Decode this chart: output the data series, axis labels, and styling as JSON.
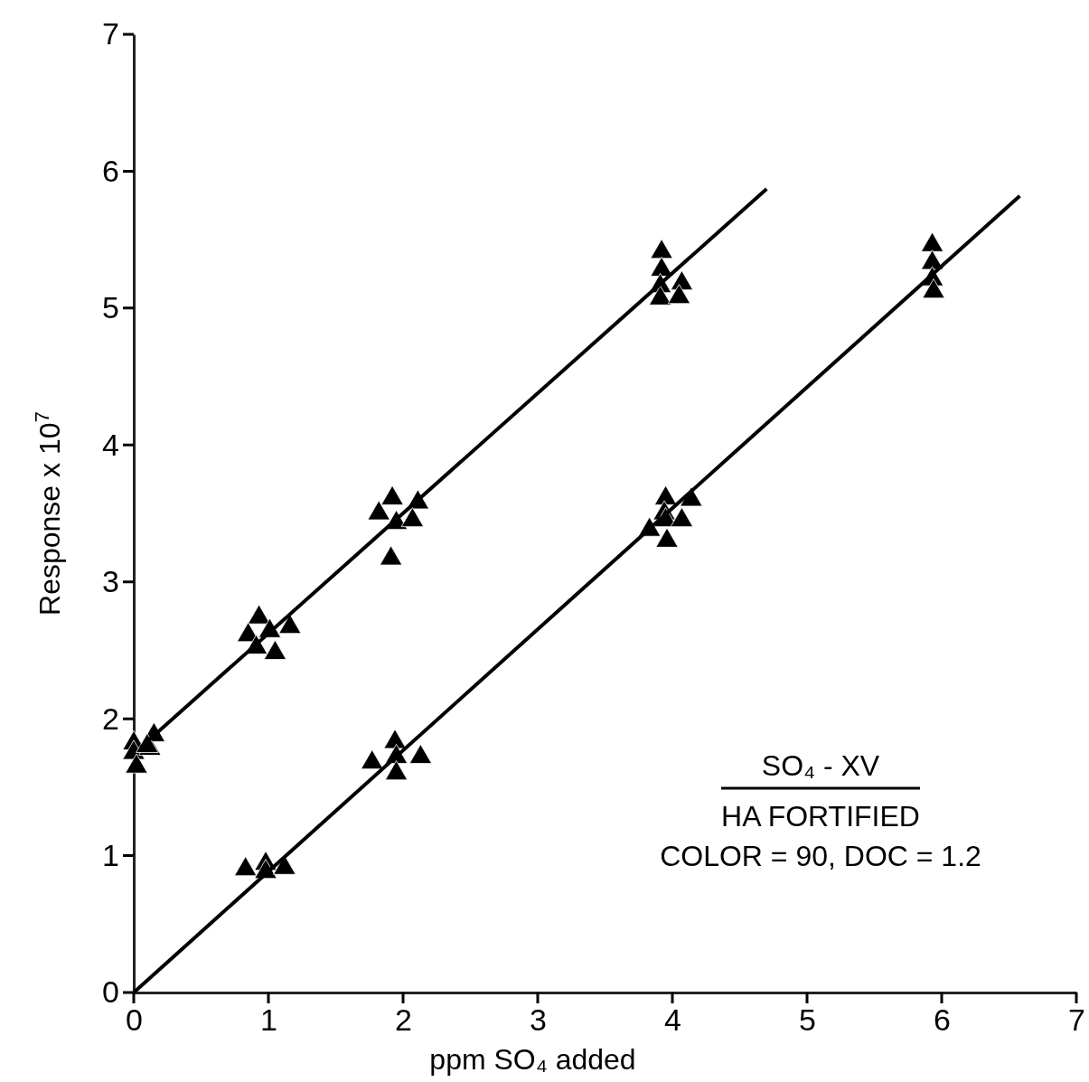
{
  "chart_data": {
    "type": "scatter",
    "xlabel": "ppm SO₄ added",
    "ylabel": "Response x 10$^{7}$",
    "xlim": [
      0,
      7
    ],
    "ylim": [
      0,
      7
    ],
    "xticks": [
      0,
      1,
      2,
      3,
      4,
      5,
      6,
      7
    ],
    "yticks": [
      0,
      1,
      2,
      3,
      4,
      5,
      6,
      7
    ],
    "grid": false,
    "legend": false,
    "marker": "triangle",
    "series": [
      {
        "type": "scatter",
        "color": "#000000",
        "x": [
          0,
          0,
          0.02,
          0.12,
          0.15,
          0.1,
          0.93,
          0.85,
          0.91,
          1.01,
          1.05,
          1.16,
          1.92,
          1.82,
          1.95,
          2.11,
          2.07,
          1.91,
          3.92,
          3.92,
          3.91,
          3.91,
          4.07,
          4.05
        ],
        "values": [
          1.82,
          1.75,
          1.65,
          1.78,
          1.88,
          1.8,
          2.74,
          2.61,
          2.52,
          2.64,
          2.48,
          2.67,
          3.61,
          3.5,
          3.43,
          3.58,
          3.45,
          3.17,
          5.41,
          5.28,
          5.16,
          5.07,
          5.18,
          5.08
        ]
      },
      {
        "type": "scatter",
        "color": "#000000",
        "x": [
          0.83,
          0.98,
          0.98,
          1.12,
          1.77,
          1.94,
          1.95,
          1.95,
          2.13,
          3.95,
          3.94,
          3.95,
          3.83,
          3.96,
          4.14,
          4.07,
          5.93,
          5.93,
          5.93,
          5.94
        ],
        "values": [
          0.9,
          0.94,
          0.88,
          0.91,
          1.68,
          1.83,
          1.72,
          1.6,
          1.72,
          3.61,
          3.5,
          3.45,
          3.38,
          3.3,
          3.6,
          3.45,
          5.46,
          5.33,
          5.21,
          5.12
        ]
      },
      {
        "type": "line",
        "color": "#000000",
        "line_style": "solid",
        "marker": "none",
        "x": [
          0.05,
          4.7
        ],
        "values": [
          1.79,
          5.87
        ]
      },
      {
        "type": "line",
        "color": "#000000",
        "line_style": "solid",
        "marker": "none",
        "x": [
          0,
          6.58
        ],
        "values": [
          0,
          5.82
        ]
      }
    ],
    "annotations": [
      "SO₄ - XV",
      "HA FORTIFIED",
      "COLOR = 90, DOC = 1.2"
    ]
  }
}
